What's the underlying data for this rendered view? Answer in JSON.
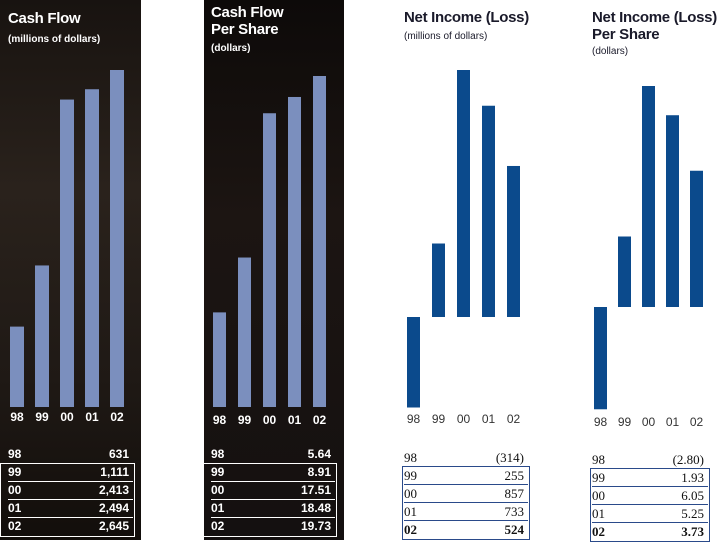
{
  "colors": {
    "dark_bar": "#7b8fbe",
    "light_bar": "#0b4a8c"
  },
  "charts": [
    {
      "title": [
        "Cash Flow"
      ],
      "subtitle": "(millions of dollars)"
    },
    {
      "title": [
        "Cash Flow",
        "Per Share"
      ],
      "subtitle": "(dollars)"
    },
    {
      "title": [
        "Net Income (Loss)"
      ],
      "subtitle": "(millions of dollars)"
    },
    {
      "title": [
        "Net Income (Loss)",
        "Per Share"
      ],
      "subtitle": "(dollars)"
    }
  ],
  "chart_data": [
    {
      "type": "bar",
      "title": "Cash Flow",
      "ylabel": "millions of dollars",
      "categories": [
        "98",
        "99",
        "00",
        "01",
        "02"
      ],
      "values": [
        631,
        1111,
        2413,
        2494,
        2645
      ],
      "table": [
        {
          "year": "98",
          "value": "631"
        },
        {
          "year": "99",
          "value": "1,111"
        },
        {
          "year": "00",
          "value": "2,413"
        },
        {
          "year": "01",
          "value": "2,494"
        },
        {
          "year": "02",
          "value": "2,645"
        }
      ]
    },
    {
      "type": "bar",
      "title": "Cash Flow Per Share",
      "ylabel": "dollars",
      "categories": [
        "98",
        "99",
        "00",
        "01",
        "02"
      ],
      "values": [
        5.64,
        8.91,
        17.51,
        18.48,
        19.73
      ],
      "table": [
        {
          "year": "98",
          "value": "5.64"
        },
        {
          "year": "99",
          "value": "8.91"
        },
        {
          "year": "00",
          "value": "17.51"
        },
        {
          "year": "01",
          "value": "18.48"
        },
        {
          "year": "02",
          "value": "19.73"
        }
      ]
    },
    {
      "type": "bar",
      "title": "Net Income (Loss)",
      "ylabel": "millions of dollars",
      "categories": [
        "98",
        "99",
        "00",
        "01",
        "02"
      ],
      "values": [
        -314,
        255,
        857,
        733,
        524
      ],
      "table": [
        {
          "year": "98",
          "value": "(314)"
        },
        {
          "year": "99",
          "value": "255"
        },
        {
          "year": "00",
          "value": "857"
        },
        {
          "year": "01",
          "value": "733"
        },
        {
          "year": "02",
          "value": "524"
        }
      ]
    },
    {
      "type": "bar",
      "title": "Net Income (Loss) Per Share",
      "ylabel": "dollars",
      "categories": [
        "98",
        "99",
        "00",
        "01",
        "02"
      ],
      "values": [
        -2.8,
        1.93,
        6.05,
        5.25,
        3.73
      ],
      "table": [
        {
          "year": "98",
          "value": "(2.80)"
        },
        {
          "year": "99",
          "value": "1.93"
        },
        {
          "year": "00",
          "value": "6.05"
        },
        {
          "year": "01",
          "value": "5.25"
        },
        {
          "year": "02",
          "value": "3.73"
        }
      ]
    }
  ]
}
